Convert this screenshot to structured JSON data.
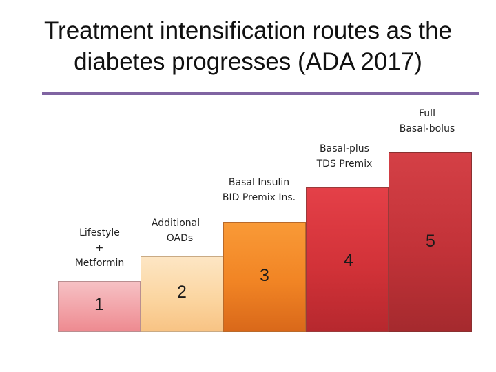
{
  "title": {
    "line1": "Treatment intensification routes as the",
    "line2": "diabetes progresses (ADA 2017)"
  },
  "steps": [
    {
      "number": "1",
      "label_lines": [
        "Lifestyle",
        "+",
        "Metformin"
      ]
    },
    {
      "number": "2",
      "label_lines": [
        "Additional",
        "OADs"
      ]
    },
    {
      "number": "3",
      "label_lines": [
        "Basal Insulin",
        "BID Premix Ins."
      ]
    },
    {
      "number": "4",
      "label_lines": [
        "Basal-plus",
        "TDS Premix"
      ]
    },
    {
      "number": "5",
      "label_lines": [
        "Full",
        "Basal-bolus"
      ]
    }
  ],
  "colors": {
    "rule": "#8064a2",
    "step1": "#f2a3a8",
    "step2": "#fbd49e",
    "step3": "#f18424",
    "step4": "#d23238",
    "step5": "#c23238"
  }
}
